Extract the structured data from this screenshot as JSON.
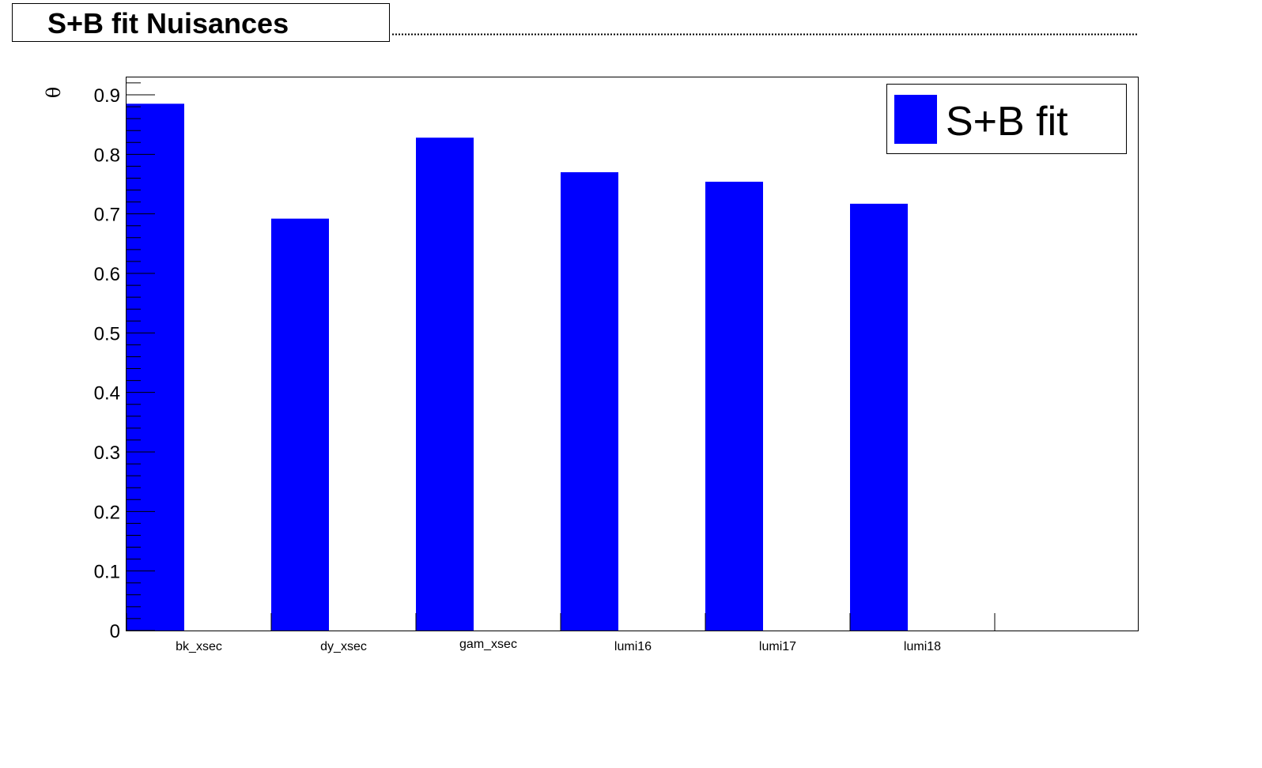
{
  "title": "S+B fit Nuisances",
  "colors": {
    "bar": "#0000ff",
    "axis": "#000000",
    "background": "#ffffff"
  },
  "legend": {
    "label": "S+B fit",
    "placement": "top-right"
  },
  "chart_data": {
    "type": "bar",
    "title": "S+B fit Nuisances",
    "xlabel": "",
    "ylabel": "θ",
    "categories": [
      "bk_xsec",
      "dy_xsec",
      "gam_xsec",
      "lumi16",
      "lumi17",
      "lumi18"
    ],
    "series": [
      {
        "name": "S+B fit",
        "values": [
          0.885,
          0.692,
          0.828,
          0.77,
          0.754,
          0.717
        ]
      }
    ],
    "ylim": [
      0,
      0.93
    ],
    "yticks": [
      "0",
      "0.1",
      "0.2",
      "0.3",
      "0.4",
      "0.5",
      "0.6",
      "0.7",
      "0.8",
      "0.9"
    ],
    "grid": false
  }
}
